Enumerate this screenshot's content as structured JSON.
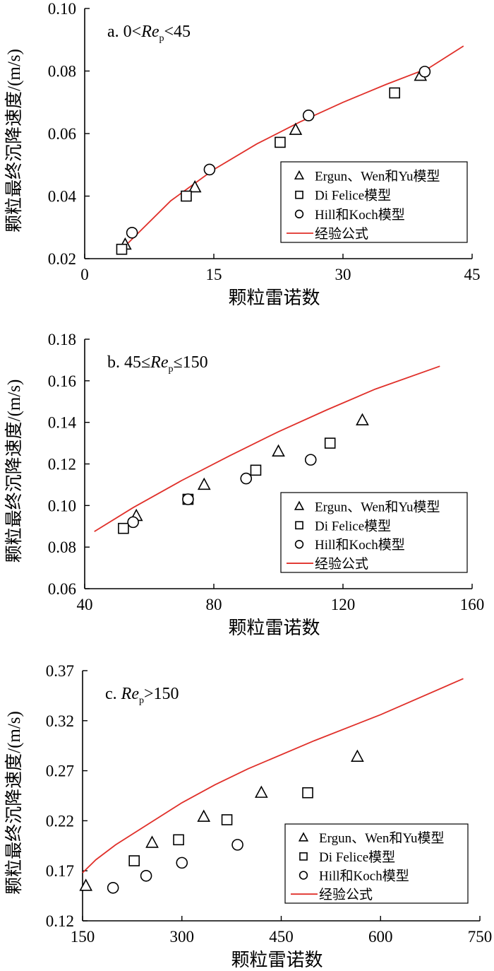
{
  "chart_data": [
    {
      "type": "scatter",
      "panel_label": {
        "prefix": "a. 0<",
        "re": "Re",
        "sub": "p",
        "suffix": "<45"
      },
      "xlabel": "颗粒雷诺数",
      "ylabel": "颗粒最终沉降速度/(m/s)",
      "xlim": [
        0,
        45
      ],
      "ylim": [
        0.02,
        0.1
      ],
      "xticks": [
        0,
        15,
        30,
        45
      ],
      "yticks": [
        0.02,
        0.04,
        0.06,
        0.08,
        0.1
      ],
      "xtick_labels": [
        "0",
        "15",
        "30",
        "45"
      ],
      "ytick_labels": [
        "0.02",
        "0.04",
        "0.06",
        "0.08",
        "0.10"
      ],
      "grid": false,
      "legend_position": "bottom-right",
      "series": [
        {
          "name": "Ergun、Wen和Yu模型",
          "marker": "triangle",
          "x": [
            4.7,
            12.8,
            24.5,
            39.0
          ],
          "y": [
            0.0245,
            0.0428,
            0.0612,
            0.0785
          ]
        },
        {
          "name": "Di Felice模型",
          "marker": "square",
          "x": [
            4.3,
            11.8,
            22.7,
            36.0
          ],
          "y": [
            0.023,
            0.04,
            0.0572,
            0.073
          ]
        },
        {
          "name": "Hill和Koch模型",
          "marker": "circle",
          "x": [
            5.5,
            14.5,
            26.0,
            39.5
          ],
          "y": [
            0.0283,
            0.0485,
            0.0658,
            0.0798
          ]
        },
        {
          "name": "经验公式",
          "marker": "line",
          "color": "#e0302a",
          "x": [
            4.5,
            10,
            15,
            20,
            25,
            30,
            35,
            40,
            44
          ],
          "y": [
            0.0235,
            0.0385,
            0.0485,
            0.0567,
            0.0637,
            0.07,
            0.0757,
            0.081,
            0.088
          ]
        }
      ]
    },
    {
      "type": "scatter",
      "panel_label": {
        "prefix": "b. 45≤",
        "re": "Re",
        "sub": "p",
        "suffix": "≤150"
      },
      "xlabel": "颗粒雷诺数",
      "ylabel": "颗粒最终沉降速度/(m/s)",
      "xlim": [
        40,
        160
      ],
      "ylim": [
        0.06,
        0.18
      ],
      "xticks": [
        40,
        80,
        120,
        160
      ],
      "yticks": [
        0.06,
        0.08,
        0.1,
        0.12,
        0.14,
        0.16,
        0.18
      ],
      "xtick_labels": [
        "40",
        "80",
        "120",
        "160"
      ],
      "ytick_labels": [
        "0.06",
        "0.08",
        "0.10",
        "0.12",
        "0.14",
        "0.16",
        "0.18"
      ],
      "grid": false,
      "legend_position": "bottom-right",
      "series": [
        {
          "name": "Ergun、Wen和Yu模型",
          "marker": "triangle",
          "x": [
            56,
            77,
            100,
            126
          ],
          "y": [
            0.095,
            0.11,
            0.126,
            0.141
          ]
        },
        {
          "name": "Di Felice模型",
          "marker": "square",
          "x": [
            52,
            72,
            93,
            116
          ],
          "y": [
            0.089,
            0.103,
            0.117,
            0.13
          ]
        },
        {
          "name": "Hill和Koch模型",
          "marker": "circle",
          "x": [
            55,
            72,
            90,
            110
          ],
          "y": [
            0.092,
            0.103,
            0.113,
            0.122
          ]
        },
        {
          "name": "经验公式",
          "marker": "line",
          "color": "#e0302a",
          "x": [
            43,
            55,
            70,
            85,
            100,
            115,
            130,
            150
          ],
          "y": [
            0.0875,
            0.099,
            0.112,
            0.124,
            0.1355,
            0.146,
            0.156,
            0.167
          ]
        }
      ]
    },
    {
      "type": "scatter",
      "panel_label": {
        "prefix": "c. ",
        "re": "Re",
        "sub": "p",
        "suffix": ">150"
      },
      "xlabel": "颗粒雷诺数",
      "ylabel": "颗粒最终沉降速度/(m/s)",
      "xlim": [
        150,
        750
      ],
      "ylim": [
        0.12,
        0.37
      ],
      "xticks": [
        150,
        300,
        450,
        600,
        750
      ],
      "yticks": [
        0.12,
        0.17,
        0.22,
        0.27,
        0.32,
        0.37
      ],
      "xtick_labels": [
        "150",
        "300",
        "450",
        "600",
        "750"
      ],
      "ytick_labels": [
        "0.12",
        "0.17",
        "0.22",
        "0.27",
        "0.32",
        "0.37"
      ],
      "grid": false,
      "legend_position": "bottom-right",
      "series": [
        {
          "name": "Ergun、Wen和Yu模型",
          "marker": "triangle",
          "x": [
            155,
            255,
            333,
            420,
            565
          ],
          "y": [
            0.155,
            0.198,
            0.224,
            0.248,
            0.284
          ]
        },
        {
          "name": "Di Felice模型",
          "marker": "square",
          "x": [
            228,
            295,
            368,
            490
          ],
          "y": [
            0.18,
            0.201,
            0.221,
            0.248
          ]
        },
        {
          "name": "Hill和Koch模型",
          "marker": "circle",
          "x": [
            196,
            246,
            300,
            384
          ],
          "y": [
            0.153,
            0.165,
            0.178,
            0.196
          ]
        },
        {
          "name": "经验公式",
          "marker": "line",
          "color": "#e0302a",
          "x": [
            150,
            170,
            200,
            250,
            300,
            350,
            400,
            500,
            600,
            725
          ],
          "y": [
            0.168,
            0.181,
            0.196,
            0.217,
            0.238,
            0.256,
            0.272,
            0.3,
            0.326,
            0.362
          ]
        }
      ]
    }
  ]
}
